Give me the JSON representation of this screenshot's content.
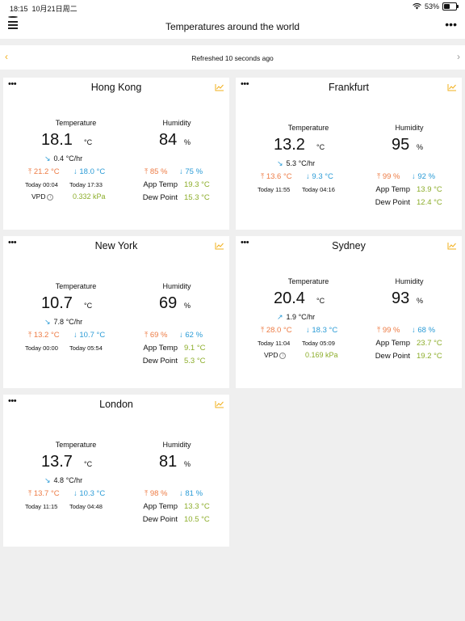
{
  "status_bar": {
    "time": "18:15",
    "date": "10月21日周二",
    "battery": "53%",
    "battery_level": 0.53
  },
  "header": {
    "title": "Temperatures around the world",
    "menu_icon": "hamburger-icon",
    "more_icon": "ellipsis-icon"
  },
  "refresh": {
    "text": "Refreshed 10 seconds ago",
    "prev_icon": "chevron-left-icon",
    "next_icon": "chevron-right-icon"
  },
  "labels": {
    "temperature": "Temperature",
    "humidity": "Humidity",
    "app_temp": "App Temp",
    "dew_point": "Dew Point",
    "vpd": "VPD",
    "deg_unit": "°C",
    "pct_unit": "%",
    "rate_unit": "°C/hr"
  },
  "colors": {
    "accent": "#f2b01e",
    "high": "#ed7b44",
    "low": "#2a9bd6",
    "derived": "#8cad2a",
    "notification": "#e8202a"
  },
  "cities": [
    {
      "name": "Hong Kong",
      "temp": "18.1",
      "trend_arrow": "↘",
      "rate": "0.4",
      "temp_high": "21.2 °C",
      "temp_low": "18.0 °C",
      "time_high": "Today 00:04",
      "time_low": "Today 17:33",
      "humidity": "84",
      "hum_high": "85 %",
      "hum_low": "75 %",
      "app_temp": "19.3 °C",
      "dew_point": "15.3 °C",
      "vpd": "0.332 kPa"
    },
    {
      "name": "Frankfurt",
      "temp": "13.2",
      "trend_arrow": "↘",
      "rate": "5.3",
      "temp_high": "13.6 °C",
      "temp_low": "9.3 °C",
      "time_high": "Today 11:55",
      "time_low": "Today 04:16",
      "humidity": "95",
      "hum_high": "99 %",
      "hum_low": "92 %",
      "app_temp": "13.9 °C",
      "dew_point": "12.4 °C"
    },
    {
      "name": "New York",
      "temp": "10.7",
      "trend_arrow": "↘",
      "rate": "7.8",
      "temp_high": "13.2 °C",
      "temp_low": "10.7 °C",
      "time_high": "Today 00:00",
      "time_low": "Today 05:54",
      "humidity": "69",
      "hum_high": "69 %",
      "hum_low": "62 %",
      "app_temp": "9.1 °C",
      "dew_point": "5.3 °C"
    },
    {
      "name": "Sydney",
      "temp": "20.4",
      "trend_arrow": "↗",
      "rate": "1.9",
      "temp_high": "28.0 °C",
      "temp_low": "18.3 °C",
      "time_high": "Today 11:04",
      "time_low": "Today 05:09",
      "humidity": "93",
      "hum_high": "99 %",
      "hum_low": "68 %",
      "app_temp": "23.7 °C",
      "dew_point": "19.2 °C",
      "vpd": "0.169 kPa"
    },
    {
      "name": "London",
      "temp": "13.7",
      "trend_arrow": "↘",
      "rate": "4.8",
      "temp_high": "13.7 °C",
      "temp_low": "10.3 °C",
      "time_high": "Today 11:15",
      "time_low": "Today 04:48",
      "humidity": "81",
      "hum_high": "98 %",
      "hum_low": "81 %",
      "app_temp": "13.3 °C",
      "dew_point": "10.5 °C"
    }
  ]
}
